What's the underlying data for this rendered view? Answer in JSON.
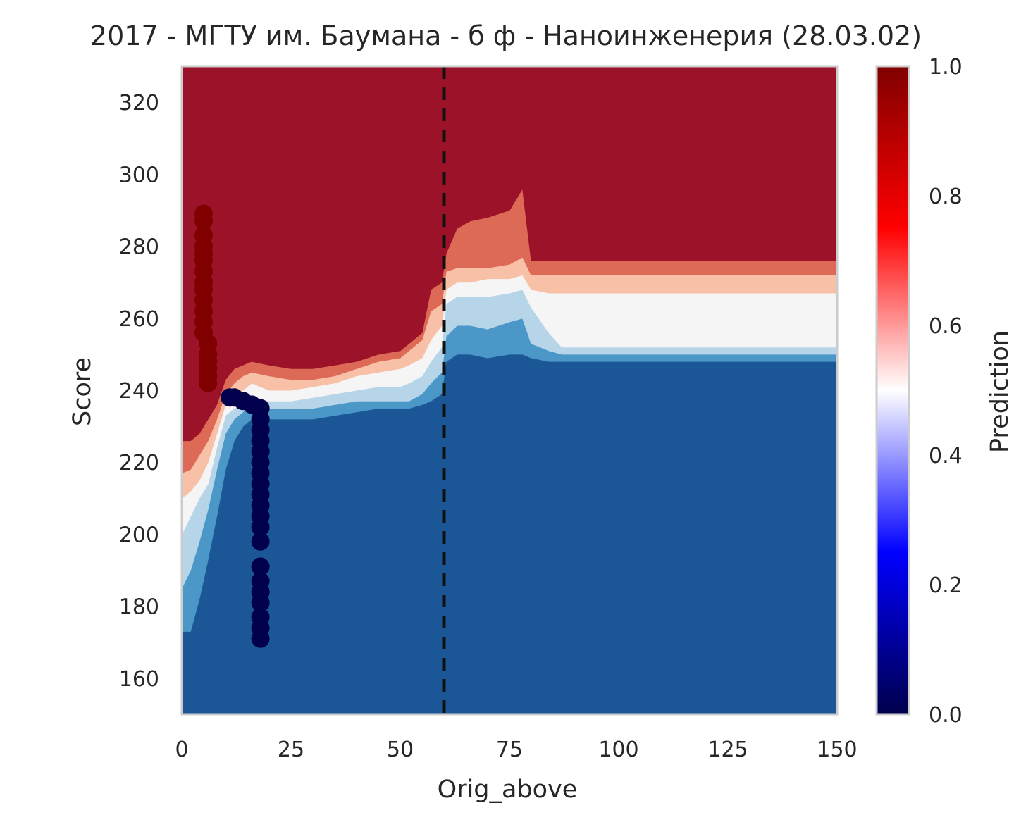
{
  "chart_data": {
    "type": "heatmap",
    "title": "2017 - МГТУ им. Баумана - б ф - Наноинженерия (28.03.02)",
    "xlabel": "Orig_above",
    "ylabel": "Score",
    "xlim": [
      0,
      150
    ],
    "ylim": [
      150,
      330
    ],
    "xticks": [
      0,
      25,
      50,
      75,
      100,
      125,
      150
    ],
    "yticks": [
      160,
      180,
      200,
      220,
      240,
      260,
      280,
      300,
      320
    ],
    "grid": false,
    "colorbar": {
      "label": "Prediction",
      "range": [
        0,
        1
      ],
      "ticks": [
        "0.0",
        "0.2",
        "0.4",
        "0.6",
        "0.8",
        "1.0"
      ],
      "colormap": "seismic"
    },
    "contour_levels": [
      {
        "range": [
          0.0,
          0.125
        ],
        "color": "#1b5796"
      },
      {
        "range": [
          0.125,
          0.25
        ],
        "color": "#4b97c8"
      },
      {
        "range": [
          0.25,
          0.375
        ],
        "color": "#b6d5e8"
      },
      {
        "range": [
          0.375,
          0.5
        ],
        "color": "#f5f5f5"
      },
      {
        "range": [
          0.5,
          0.625
        ],
        "color": "#f8c1a7"
      },
      {
        "range": [
          0.625,
          0.75
        ],
        "color": "#dc6a56"
      },
      {
        "range": [
          0.75,
          1.0
        ],
        "color": "#9b1229"
      }
    ],
    "boundaries": {
      "x": [
        0,
        2,
        4,
        6,
        8,
        10,
        12,
        14,
        16,
        20,
        25,
        30,
        35,
        40,
        45,
        50,
        52,
        55,
        57,
        59.5,
        60.5,
        63,
        66,
        70,
        75,
        78,
        80,
        84,
        87,
        100,
        125,
        150
      ],
      "levels": [
        [
          173,
          173,
          182,
          193,
          205,
          218,
          226,
          230,
          232,
          232,
          232,
          232,
          233,
          234,
          235,
          235,
          235,
          236,
          237,
          239,
          248,
          250,
          250,
          249,
          250,
          250,
          249,
          248,
          248,
          248,
          248,
          248
        ],
        [
          185,
          190,
          198,
          207,
          218,
          228,
          232,
          234,
          236,
          235,
          235,
          235,
          236,
          237,
          237,
          237,
          237,
          239,
          242,
          245,
          255,
          258,
          258,
          257,
          259,
          260,
          253,
          251,
          250,
          250,
          250,
          250
        ],
        [
          200,
          205,
          210,
          214,
          224,
          233,
          235,
          236,
          238,
          237,
          237,
          238,
          239,
          240,
          241,
          241,
          242,
          244,
          248,
          252,
          264,
          266,
          266,
          266,
          267,
          268,
          263,
          256,
          252,
          252,
          252,
          252
        ],
        [
          210,
          212,
          215,
          220,
          228,
          236,
          238,
          240,
          242,
          240,
          240,
          241,
          242,
          244,
          245,
          246,
          247,
          249,
          254,
          258,
          268,
          270,
          270,
          271,
          271,
          272,
          268,
          267,
          267,
          267,
          267,
          267
        ],
        [
          217,
          218,
          222,
          226,
          232,
          239,
          242,
          244,
          245,
          244,
          243,
          243,
          244,
          246,
          248,
          249,
          251,
          254,
          262,
          264,
          273,
          274,
          274,
          274,
          275,
          277,
          272,
          272,
          272,
          272,
          272,
          272
        ],
        [
          226,
          226,
          228,
          232,
          236,
          243,
          246,
          247,
          248,
          247,
          246,
          246,
          247,
          248,
          250,
          251,
          253,
          256,
          268,
          270,
          278,
          285,
          287,
          288,
          290,
          296,
          276,
          276,
          276,
          276,
          276,
          276
        ]
      ]
    },
    "vline": {
      "x": 60,
      "style": "dashed",
      "color": "#111111"
    },
    "scatter": [
      {
        "name": "",
        "color": "#800000",
        "points": [
          [
            5,
            289
          ],
          [
            5,
            287
          ],
          [
            5,
            283
          ],
          [
            5,
            280
          ],
          [
            5,
            278
          ],
          [
            5,
            276
          ],
          [
            5,
            273
          ],
          [
            5,
            270
          ],
          [
            5,
            268
          ],
          [
            5,
            265
          ],
          [
            5,
            262
          ],
          [
            5,
            259
          ],
          [
            5,
            256
          ],
          [
            6,
            253
          ],
          [
            6,
            250
          ],
          [
            6,
            248
          ],
          [
            6,
            246
          ],
          [
            6,
            244
          ],
          [
            6,
            242
          ]
        ]
      },
      {
        "name": "",
        "color": "#00004c",
        "points": [
          [
            11,
            238
          ],
          [
            12,
            238
          ],
          [
            14,
            237
          ],
          [
            16,
            236
          ],
          [
            18,
            235
          ],
          [
            18,
            232
          ],
          [
            18,
            229
          ],
          [
            18,
            226
          ],
          [
            18,
            223
          ],
          [
            18,
            220
          ],
          [
            18,
            217
          ],
          [
            18,
            214
          ],
          [
            18,
            211
          ],
          [
            18,
            208
          ],
          [
            18,
            205
          ],
          [
            18,
            202
          ],
          [
            18,
            198
          ],
          [
            18,
            191
          ],
          [
            18,
            187
          ],
          [
            18,
            184
          ],
          [
            18,
            181
          ],
          [
            18,
            177
          ],
          [
            18,
            174
          ],
          [
            18,
            171
          ]
        ]
      }
    ]
  }
}
